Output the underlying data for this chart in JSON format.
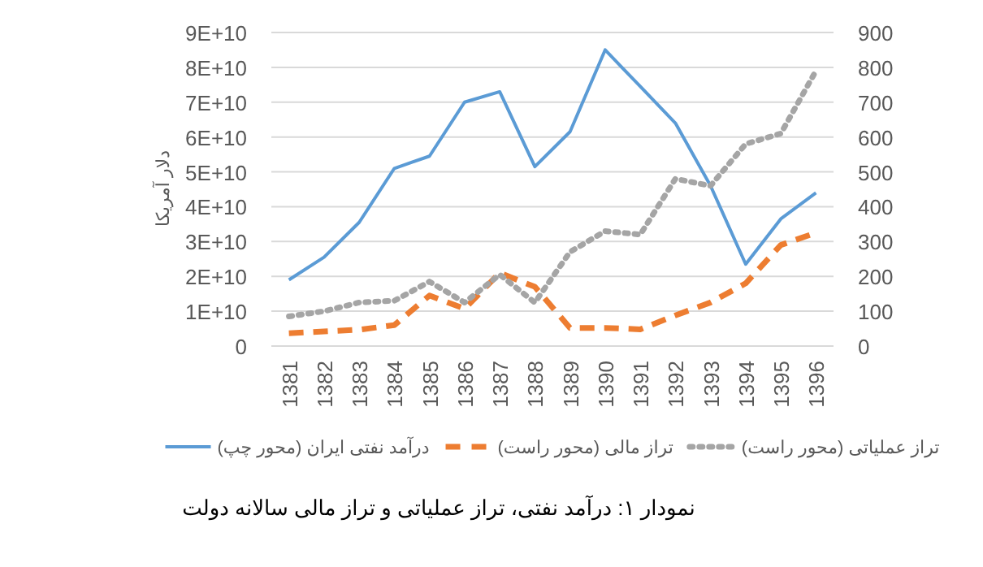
{
  "chart_data": {
    "type": "line",
    "categories": [
      "1381",
      "1382",
      "1383",
      "1384",
      "1385",
      "1386",
      "1387",
      "1388",
      "1389",
      "1390",
      "1391",
      "1392",
      "1393",
      "1394",
      "1395",
      "1396"
    ],
    "series": [
      {
        "name": "درآمد نفتی ایران (محور چپ)",
        "color": "#5b9bd5",
        "line_style": "solid",
        "values": [
          19000000000.0,
          25500000000.0,
          35500000000.0,
          51000000000.0,
          54500000000.0,
          70000000000.0,
          73000000000.0,
          51500000000.0,
          61500000000.0,
          85000000000.0,
          74500000000.0,
          64000000000.0,
          46000000000.0,
          23500000000.0,
          36500000000.0,
          44000000000.0
        ]
      },
      {
        "name": "تراز مالی (محور راست)",
        "color": "#ed7d31",
        "line_style": "dashed",
        "axis": "y2",
        "values": [
          37,
          42,
          47,
          60,
          145,
          107,
          210,
          170,
          52,
          52,
          48,
          88,
          125,
          180,
          290,
          325
        ]
      },
      {
        "name": "تراز عملیاتی (محور راست)",
        "color": "#a5a5a5",
        "line_style": "dotted",
        "axis": "y2",
        "values": [
          85,
          100,
          125,
          130,
          185,
          125,
          205,
          125,
          270,
          330,
          320,
          480,
          460,
          580,
          610,
          790
        ]
      }
    ],
    "ylabel": "دلار آمریکا",
    "ylim": [
      0,
      90000000000.0
    ],
    "yticks": [
      0,
      {
        "value": 10000000000.0,
        "label": "1E+10"
      },
      {
        "value": 20000000000.0,
        "label": "2E+10"
      },
      {
        "value": 30000000000.0,
        "label": "3E+10"
      },
      {
        "value": 40000000000.0,
        "label": "4E+10"
      },
      {
        "value": 50000000000.0,
        "label": "5E+10"
      },
      {
        "value": 60000000000.0,
        "label": "6E+10"
      },
      {
        "value": 70000000000.0,
        "label": "7E+10"
      },
      {
        "value": 80000000000.0,
        "label": "8E+10"
      },
      {
        "value": 90000000000.0,
        "label": "9E+10"
      }
    ],
    "y2lim": [
      0,
      900
    ],
    "y2ticks": [
      0,
      100,
      200,
      300,
      400,
      500,
      600,
      700,
      800,
      900
    ],
    "grid": "y",
    "legend": "bottom",
    "marker": "none",
    "annotations": [
      "نمودار ۱: درآمد نفتی، تراز عملیاتی و تراز مالی سالانه دولت"
    ]
  }
}
